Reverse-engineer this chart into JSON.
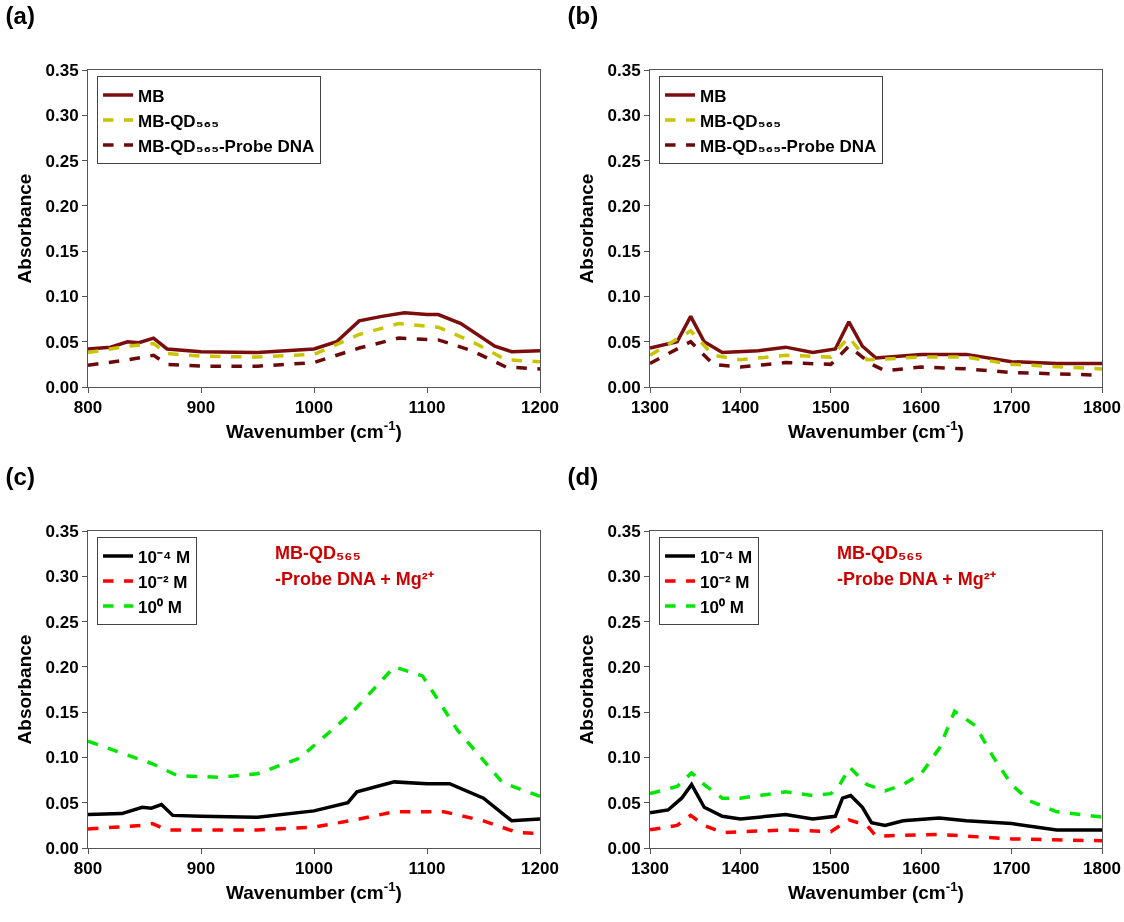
{
  "chart_data": [
    {
      "type": "line",
      "title": "(a)",
      "xlabel": "Wavenumber (cm$^{-1}$)",
      "ylabel": "Absorbance",
      "xlim": [
        800,
        1200
      ],
      "xticks": [
        800,
        900,
        1000,
        1100,
        1200
      ],
      "ylim": [
        0,
        0.35
      ],
      "yticks": [
        {
          "value": 0,
          "label": "0.00"
        },
        0.05,
        {
          "value": 0.1,
          "label": "0.10"
        },
        0.15,
        {
          "value": 0.2,
          "label": "0.20"
        },
        0.25,
        {
          "value": 0.3,
          "label": "0.30"
        },
        0.35
      ],
      "grid": false,
      "legend": "top left",
      "series": [
        {
          "name": "MB",
          "color": "#7b0d0d",
          "line_style": "solid",
          "x": [
            800,
            820,
            835,
            845,
            858,
            870,
            900,
            950,
            1000,
            1020,
            1040,
            1060,
            1080,
            1100,
            1110,
            1130,
            1160,
            1175,
            1200
          ],
          "values": [
            0.042,
            0.044,
            0.05,
            0.049,
            0.054,
            0.042,
            0.039,
            0.038,
            0.042,
            0.05,
            0.073,
            0.078,
            0.082,
            0.08,
            0.08,
            0.07,
            0.045,
            0.039,
            0.04
          ]
        },
        {
          "name": "MB-QD₅₆₅",
          "color": "#c8c400",
          "line_style": "dashed",
          "x": [
            800,
            835,
            858,
            870,
            900,
            950,
            1000,
            1040,
            1075,
            1110,
            1140,
            1170,
            1200
          ],
          "values": [
            0.038,
            0.045,
            0.048,
            0.037,
            0.034,
            0.033,
            0.036,
            0.058,
            0.07,
            0.066,
            0.05,
            0.03,
            0.028
          ]
        },
        {
          "name": "MB-QD₅₆₅-Probe DNA",
          "color": "#6b0a0a",
          "line_style": "dashed",
          "x": [
            800,
            835,
            858,
            870,
            900,
            950,
            1000,
            1040,
            1075,
            1110,
            1140,
            1170,
            1200
          ],
          "values": [
            0.024,
            0.03,
            0.035,
            0.025,
            0.023,
            0.023,
            0.027,
            0.043,
            0.054,
            0.052,
            0.04,
            0.022,
            0.02
          ]
        }
      ]
    },
    {
      "type": "line",
      "title": "(b)",
      "xlabel": "Wavenumber (cm$^{-1}$)",
      "ylabel": "Absorbance",
      "xlim": [
        1300,
        1800
      ],
      "xticks": [
        1300,
        1400,
        1500,
        1600,
        1700,
        1800
      ],
      "ylim": [
        0,
        0.35
      ],
      "yticks": [
        {
          "value": 0,
          "label": "0.00"
        },
        0.05,
        {
          "value": 0.1,
          "label": "0.10"
        },
        0.15,
        {
          "value": 0.2,
          "label": "0.20"
        },
        0.25,
        {
          "value": 0.3,
          "label": "0.30"
        },
        0.35
      ],
      "grid": false,
      "legend": "top left",
      "series": [
        {
          "name": "MB",
          "color": "#7b0d0d",
          "line_style": "solid",
          "x": [
            1300,
            1330,
            1345,
            1360,
            1380,
            1420,
            1450,
            1480,
            1505,
            1520,
            1535,
            1550,
            1600,
            1650,
            1700,
            1750,
            1800
          ],
          "values": [
            0.043,
            0.05,
            0.078,
            0.05,
            0.038,
            0.04,
            0.044,
            0.038,
            0.042,
            0.072,
            0.045,
            0.032,
            0.036,
            0.036,
            0.028,
            0.026,
            0.026
          ]
        },
        {
          "name": "MB-QD₅₆₅",
          "color": "#c8c400",
          "line_style": "dashed",
          "x": [
            1300,
            1345,
            1370,
            1400,
            1450,
            1500,
            1520,
            1540,
            1600,
            1650,
            1700,
            1800
          ],
          "values": [
            0.035,
            0.062,
            0.035,
            0.03,
            0.035,
            0.033,
            0.055,
            0.03,
            0.033,
            0.033,
            0.025,
            0.02
          ]
        },
        {
          "name": "MB-QD₅₆₅-Probe DNA",
          "color": "#6b0a0a",
          "line_style": "dashed",
          "x": [
            1300,
            1345,
            1370,
            1400,
            1450,
            1500,
            1520,
            1545,
            1560,
            1600,
            1650,
            1700,
            1800
          ],
          "values": [
            0.026,
            0.05,
            0.025,
            0.022,
            0.027,
            0.025,
            0.045,
            0.025,
            0.018,
            0.022,
            0.02,
            0.016,
            0.013
          ]
        }
      ]
    },
    {
      "type": "line",
      "title": "(c)",
      "xlabel": "Wavenumber (cm$^{-1}$)",
      "ylabel": "Absorbance",
      "xlim": [
        800,
        1200
      ],
      "xticks": [
        800,
        900,
        1000,
        1100,
        1200
      ],
      "ylim": [
        0,
        0.35
      ],
      "yticks": [
        {
          "value": 0,
          "label": "0.00"
        },
        0.05,
        {
          "value": 0.1,
          "label": "0.10"
        },
        0.15,
        {
          "value": 0.2,
          "label": "0.20"
        },
        0.25,
        {
          "value": 0.3,
          "label": "0.30"
        },
        0.35
      ],
      "grid": false,
      "legend": "top left",
      "annotations": [
        "MB-QD₅₆₅",
        "-Probe DNA + Mg²⁺"
      ],
      "series": [
        {
          "name": "10⁻⁴ M",
          "color": "#000000",
          "line_style": "solid",
          "x": [
            800,
            830,
            848,
            856,
            865,
            875,
            900,
            950,
            1000,
            1030,
            1038,
            1071,
            1100,
            1120,
            1150,
            1175,
            1200
          ],
          "values": [
            0.037,
            0.038,
            0.045,
            0.044,
            0.048,
            0.036,
            0.035,
            0.034,
            0.041,
            0.05,
            0.062,
            0.073,
            0.071,
            0.071,
            0.055,
            0.03,
            0.032
          ]
        },
        {
          "name": "10⁻² M",
          "color": "#ff0000",
          "line_style": "dashed",
          "x": [
            800,
            848,
            857,
            870,
            950,
            1000,
            1040,
            1071,
            1115,
            1150,
            1180,
            1200
          ],
          "values": [
            0.021,
            0.025,
            0.027,
            0.02,
            0.02,
            0.023,
            0.032,
            0.04,
            0.04,
            0.03,
            0.017,
            0.016
          ]
        },
        {
          "name": "10⁰ M",
          "color": "#00e600",
          "line_style": "dashed",
          "x": [
            800,
            857,
            879,
            916,
            950,
            987,
            1034,
            1071,
            1096,
            1127,
            1167,
            1200
          ],
          "values": [
            0.118,
            0.093,
            0.08,
            0.078,
            0.082,
            0.099,
            0.15,
            0.2,
            0.19,
            0.13,
            0.072,
            0.057
          ]
        }
      ]
    },
    {
      "type": "line",
      "title": "(d)",
      "xlabel": "Wavenumber (cm$^{-1}$)",
      "ylabel": "Absorbance",
      "xlim": [
        1300,
        1800
      ],
      "xticks": [
        1300,
        1400,
        1500,
        1600,
        1700,
        1800
      ],
      "ylim": [
        0,
        0.35
      ],
      "yticks": [
        {
          "value": 0,
          "label": "0.00"
        },
        0.05,
        {
          "value": 0.1,
          "label": "0.10"
        },
        0.15,
        {
          "value": 0.2,
          "label": "0.20"
        },
        0.25,
        {
          "value": 0.3,
          "label": "0.30"
        },
        0.35
      ],
      "grid": false,
      "legend": "top left",
      "annotations": [
        "MB-QD₅₆₅",
        "-Probe DNA + Mg²⁺"
      ],
      "series": [
        {
          "name": "10⁻⁴ M",
          "color": "#000000",
          "line_style": "solid",
          "x": [
            1300,
            1320,
            1335,
            1346,
            1360,
            1380,
            1400,
            1450,
            1480,
            1505,
            1513,
            1522,
            1535,
            1545,
            1560,
            1580,
            1620,
            1650,
            1700,
            1750,
            1800
          ],
          "values": [
            0.039,
            0.042,
            0.055,
            0.07,
            0.045,
            0.035,
            0.032,
            0.037,
            0.032,
            0.035,
            0.055,
            0.058,
            0.045,
            0.028,
            0.025,
            0.03,
            0.033,
            0.03,
            0.027,
            0.02,
            0.02
          ]
        },
        {
          "name": "10⁻² M",
          "color": "#ff0000",
          "line_style": "dashed",
          "x": [
            1300,
            1330,
            1345,
            1360,
            1380,
            1450,
            1500,
            1520,
            1540,
            1550,
            1580,
            1620,
            1700,
            1800
          ],
          "values": [
            0.02,
            0.025,
            0.036,
            0.025,
            0.017,
            0.02,
            0.018,
            0.031,
            0.025,
            0.013,
            0.014,
            0.015,
            0.01,
            0.008
          ]
        },
        {
          "name": "10⁰ M",
          "color": "#00e600",
          "line_style": "dashed",
          "x": [
            1300,
            1330,
            1346,
            1360,
            1380,
            1400,
            1450,
            1480,
            1500,
            1510,
            1521,
            1540,
            1560,
            1580,
            1600,
            1620,
            1637,
            1660,
            1680,
            1700,
            1720,
            1750,
            1800
          ],
          "values": [
            0.06,
            0.068,
            0.083,
            0.07,
            0.055,
            0.055,
            0.062,
            0.058,
            0.06,
            0.07,
            0.089,
            0.07,
            0.063,
            0.07,
            0.082,
            0.11,
            0.151,
            0.135,
            0.1,
            0.07,
            0.052,
            0.04,
            0.034
          ]
        }
      ]
    }
  ]
}
